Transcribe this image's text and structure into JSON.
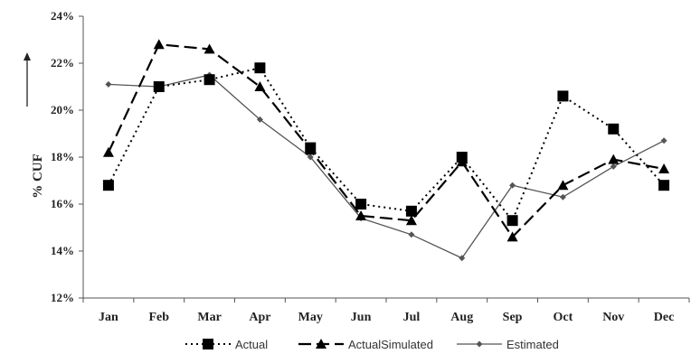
{
  "chart_data": {
    "type": "line",
    "title": "",
    "xlabel": "",
    "ylabel": "% CUF",
    "ylim": [
      12,
      24
    ],
    "y_ticks": [
      "12%",
      "14%",
      "16%",
      "18%",
      "20%",
      "22%",
      "24%"
    ],
    "categories": [
      "Jan",
      "Feb",
      "Mar",
      "Apr",
      "May",
      "Jun",
      "Jul",
      "Aug",
      "Sep",
      "Oct",
      "Nov",
      "Dec"
    ],
    "grid": false,
    "legend_position": "bottom",
    "series": [
      {
        "name": "Actual",
        "style": "dotted",
        "marker": "square",
        "color": "#000000",
        "values": [
          16.8,
          21.0,
          21.3,
          21.8,
          18.4,
          16.0,
          15.7,
          18.0,
          15.3,
          20.6,
          19.2,
          16.8
        ]
      },
      {
        "name": "ActualSimulated",
        "style": "dashed",
        "marker": "triangle",
        "color": "#000000",
        "values": [
          18.2,
          22.8,
          22.6,
          21.0,
          18.3,
          15.5,
          15.3,
          17.8,
          14.6,
          16.8,
          17.9,
          17.5
        ]
      },
      {
        "name": "Estimated",
        "style": "solid",
        "marker": "diamond",
        "color": "#555555",
        "values": [
          21.1,
          21.0,
          21.5,
          19.6,
          18.0,
          15.4,
          14.7,
          13.7,
          16.8,
          16.3,
          17.6,
          18.7
        ]
      }
    ]
  }
}
